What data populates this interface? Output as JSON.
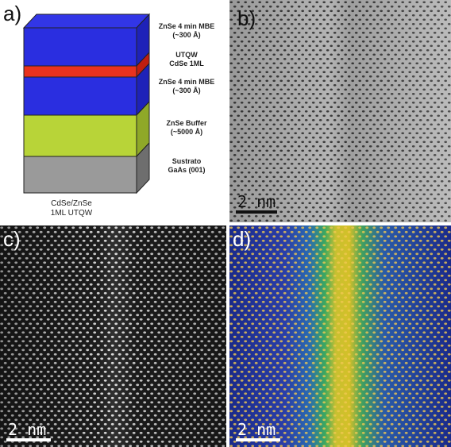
{
  "panels": {
    "a": {
      "label": "a)",
      "layers": [
        {
          "line1": "ZnSe 4 min MBE",
          "line2": "(~300 Å)",
          "color": "#2a2ee0"
        },
        {
          "line1": "UTQW",
          "line2": "CdSe 1ML",
          "color": "#e8321e"
        },
        {
          "line1": "ZnSe 4 min MBE",
          "line2": "(~300 Å)",
          "color": "#2a2ee0"
        },
        {
          "line1": "ZnSe Buffer",
          "line2": "(~5000 Å)",
          "color": "#b8d438"
        },
        {
          "line1": "Sustrato",
          "line2": "GaAs (001)",
          "color": "#9a9a9a"
        }
      ],
      "caption_line1": "CdSe/ZnSe",
      "caption_line2": "1ML UTQW"
    },
    "b": {
      "label": "b)",
      "scalebar": "2 nm"
    },
    "c": {
      "label": "c)",
      "scalebar": "2 nm"
    },
    "d": {
      "label": "d)",
      "scalebar": "2 nm"
    }
  }
}
